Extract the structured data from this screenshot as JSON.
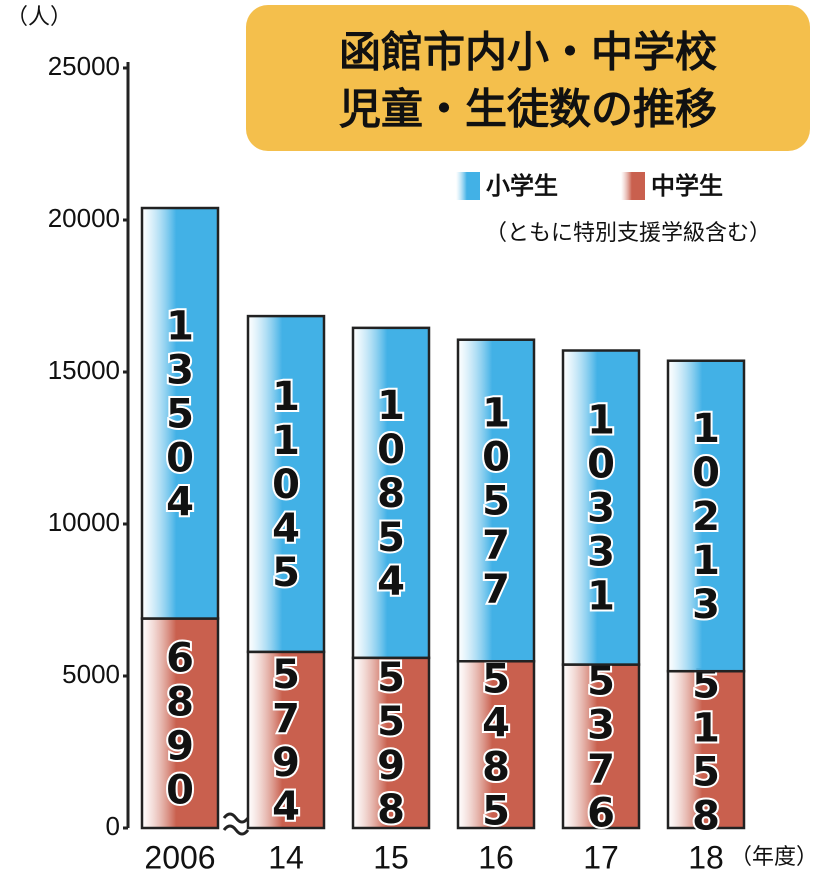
{
  "chart_data": {
    "type": "stacked_bar",
    "title_lines": [
      "函館市内小・中学校",
      "児童・生徒数の推移"
    ],
    "note": "（ともに特別支援学級含む）",
    "y_label": "（人）",
    "x_label": "（年度）",
    "categories": [
      "2006",
      "14",
      "15",
      "16",
      "17",
      "18"
    ],
    "series": [
      {
        "name": "中学生",
        "color": "#c9604e",
        "values": [
          6890,
          5794,
          5598,
          5485,
          5376,
          5158
        ]
      },
      {
        "name": "小学生",
        "color": "#42b1e6",
        "values": [
          13504,
          11045,
          10854,
          10577,
          10331,
          10213
        ]
      }
    ],
    "ylim": [
      0,
      25000
    ],
    "yticks": [
      0,
      5000,
      10000,
      15000,
      20000,
      25000
    ]
  }
}
